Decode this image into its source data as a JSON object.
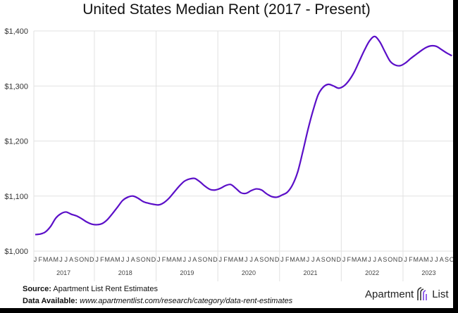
{
  "chart_data": {
    "type": "line",
    "title": "United States Median Rent (2017 - Present)",
    "xlabel": "",
    "ylabel": "",
    "ylim": [
      1000,
      1400
    ],
    "yticks": [
      "$1,000",
      "$1,100",
      "$1,200",
      "$1,300",
      "$1,400"
    ],
    "ytick_values": [
      1000,
      1100,
      1200,
      1300,
      1400
    ],
    "month_labels": [
      "J",
      "F",
      "M",
      "A",
      "M",
      "J",
      "J",
      "A",
      "S",
      "O",
      "N",
      "D"
    ],
    "years": [
      "2017",
      "2018",
      "2019",
      "2020",
      "2021",
      "2022",
      "2023"
    ],
    "grid": true,
    "line_color": "#5b0fc8",
    "series": [
      {
        "values": [
          1030,
          1031,
          1035,
          1045,
          1060,
          1068,
          1071,
          1067,
          1064,
          1059,
          1053,
          1049,
          1048,
          1050,
          1057,
          1068,
          1080,
          1092,
          1098,
          1100,
          1096,
          1090,
          1087,
          1085,
          1084,
          1088,
          1096,
          1107,
          1118,
          1127,
          1131,
          1132,
          1126,
          1118,
          1112,
          1111,
          1114,
          1119,
          1121,
          1114,
          1106,
          1105,
          1110,
          1113,
          1111,
          1104,
          1099,
          1098,
          1102,
          1107,
          1120,
          1143,
          1180,
          1220,
          1255,
          1284,
          1298,
          1303,
          1300,
          1296,
          1300,
          1310,
          1325,
          1345,
          1365,
          1382,
          1390,
          1380,
          1362,
          1345,
          1338,
          1337,
          1342,
          1350,
          1357,
          1364,
          1370,
          1373,
          1372,
          1366,
          1360,
          1355
        ]
      }
    ]
  },
  "footer": {
    "source_label": "Source:",
    "source_text": "Apartment List Rent Estimates",
    "data_label": "Data Available:",
    "data_url": "www.apartmentlist.com/research/category/data-rent-estimates"
  },
  "logo": {
    "text_left": "Apartment",
    "text_right": "List",
    "icon": "apartment-list-logo-icon"
  }
}
